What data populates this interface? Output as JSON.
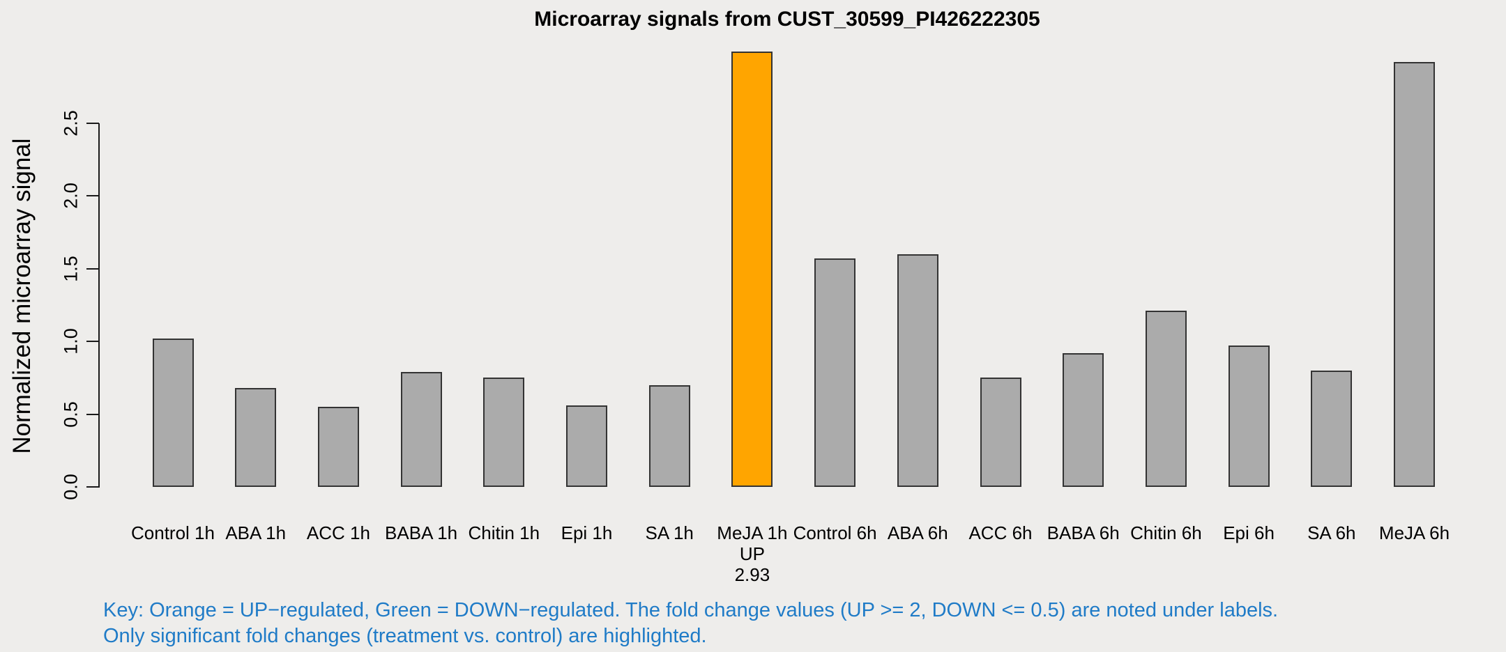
{
  "chart_data": {
    "type": "bar",
    "title": "Microarray signals from CUST_30599_PI426222305",
    "xlabel": "",
    "ylabel": "Normalized microarray signal",
    "ylim": [
      0,
      3.12
    ],
    "yticks": [
      0.0,
      0.5,
      1.0,
      1.5,
      2.0,
      2.5
    ],
    "grid": false,
    "legend_position": "none",
    "categories": [
      "Control 1h",
      "ABA 1h",
      "ACC 1h",
      "BABA 1h",
      "Chitin 1h",
      "Epi 1h",
      "SA 1h",
      "MeJA 1h",
      "Control 6h",
      "ABA 6h",
      "ACC 6h",
      "BABA 6h",
      "Chitin 6h",
      "Epi 6h",
      "SA 6h",
      "MeJA 6h"
    ],
    "values": [
      1.02,
      0.68,
      0.55,
      0.79,
      0.75,
      0.56,
      0.7,
      2.99,
      1.57,
      1.6,
      0.75,
      0.92,
      1.21,
      0.97,
      0.8,
      2.92
    ],
    "highlighted_bars": [
      {
        "category": "MeJA 1h",
        "direction": "UP",
        "fold_change": "2.93"
      }
    ]
  },
  "colors": {
    "background": "#eeedeb",
    "bar_default": "#ababab",
    "bar_up": "#ffa500",
    "bar_down": "#2e8b22",
    "bar_border": "#333333",
    "axis": "#1a1a1a",
    "key_text": "#1f7bc7"
  },
  "key": {
    "line1": "Key: Orange = UP−regulated, Green = DOWN−regulated. The fold change values (UP >= 2, DOWN <= 0.5) are noted under labels.",
    "line2": "Only significant fold changes (treatment vs. control) are highlighted."
  }
}
